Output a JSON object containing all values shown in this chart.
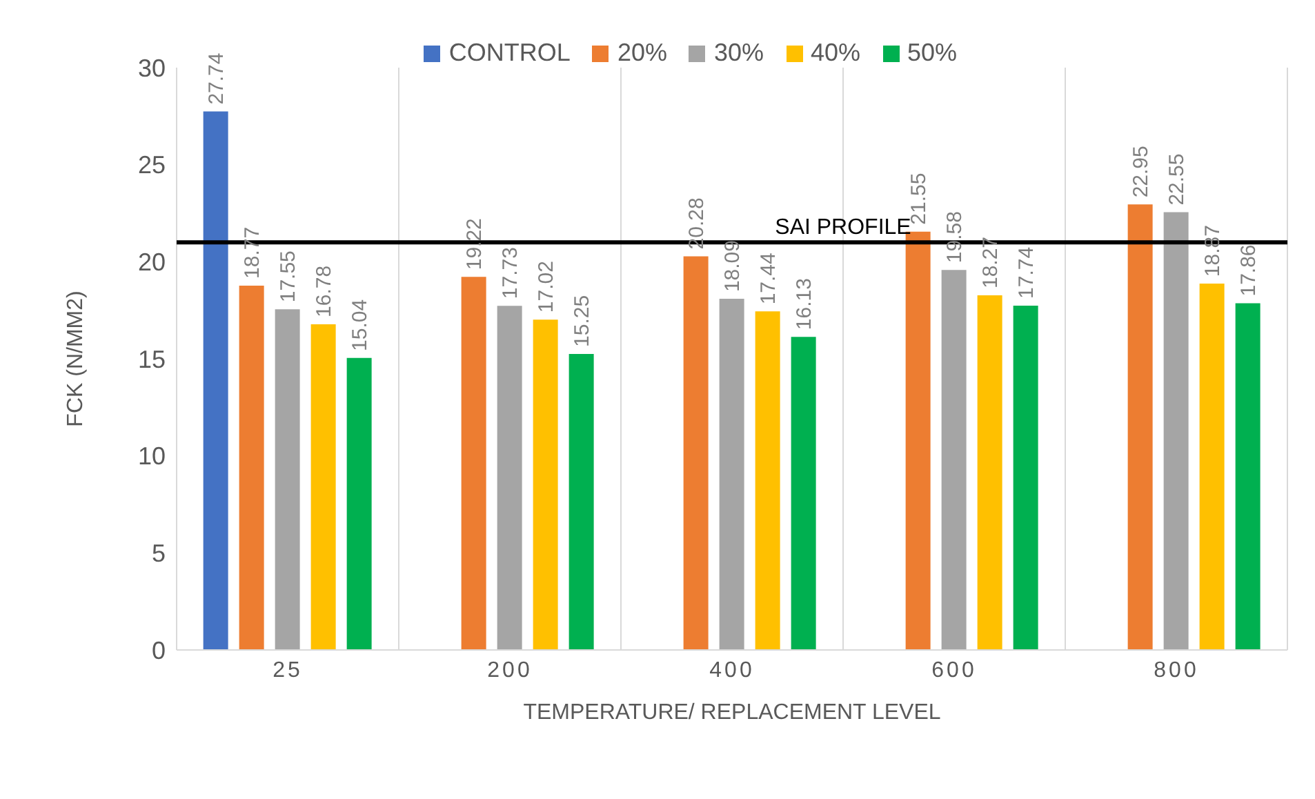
{
  "chart_data": {
    "type": "bar",
    "xlabel": "TEMPERATURE/ REPLACEMENT LEVEL",
    "ylabel": "FCK (N/MM2)",
    "categories": [
      "25",
      "200",
      "400",
      "600",
      "800"
    ],
    "series": [
      {
        "name": "CONTROL",
        "color": "#4472c4",
        "values": [
          27.74,
          null,
          null,
          null,
          null
        ]
      },
      {
        "name": "20%",
        "color": "#ed7d31",
        "values": [
          18.77,
          19.22,
          20.28,
          21.55,
          22.95
        ]
      },
      {
        "name": "30%",
        "color": "#a5a5a5",
        "values": [
          17.55,
          17.73,
          18.09,
          19.58,
          22.55
        ]
      },
      {
        "name": "40%",
        "color": "#ffc000",
        "values": [
          16.78,
          17.02,
          17.44,
          18.27,
          18.87
        ]
      },
      {
        "name": "50%",
        "color": "#00b050",
        "values": [
          15.04,
          15.25,
          16.13,
          17.74,
          17.86
        ]
      }
    ],
    "ylim": [
      0,
      30
    ],
    "yticks": [
      0,
      5,
      10,
      15,
      20,
      25,
      30
    ],
    "grid": "x",
    "legend": "top",
    "data_labels": true,
    "ref_lines": [
      {
        "axis": "y",
        "value": 21,
        "label": "SAI PROFILE",
        "color": "#000000"
      }
    ]
  }
}
